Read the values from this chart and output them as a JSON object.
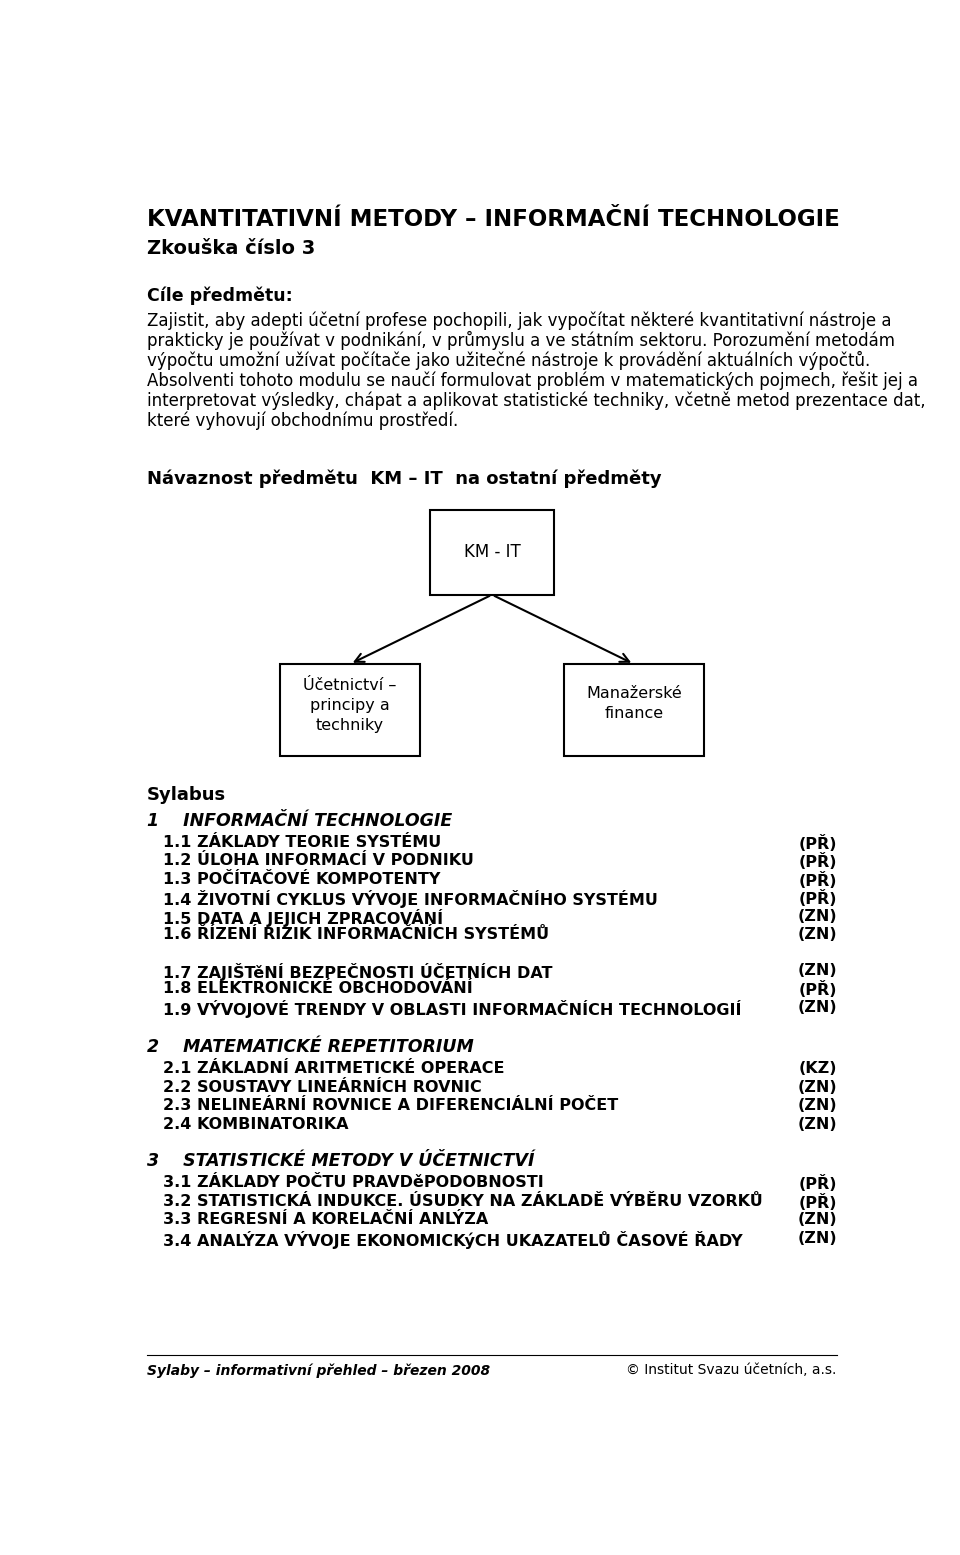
{
  "title": "KVANTITATIVNÍ METODY – INFORMAČNÍ TECHNOLOGIE",
  "subtitle": "Zkouška číslo 3",
  "section_cile": "Cíle předmětu:",
  "cile_lines": [
    "Zajistit, aby adepti účetní profese pochopili, jak vypočítat některé kvantitativní nástroje a",
    "prakticky je používat v podnikání, v průmyslu a ve státním sektoru. Porozumění metodám",
    "výpočtu umožní užívat počítače jako užitečné nástroje k provádění aktuálních výpočtů.",
    "Absolventi tohoto modulu se naučí formulovat problém v matematických pojmech, řešit jej a",
    "interpretovat výsledky, chápat a aplikovat statistické techniky, včetně metod prezentace dat,",
    "které vyhovují obchodnímu prostředí."
  ],
  "navaznost_title": "Návaznost předmětu  KM – IT  na ostatní předměty",
  "box_kmit": "KM - IT",
  "sylabus_title": "Sylabus",
  "section1_title": "1    INFORMAČNÍ TECHNOLOGIE",
  "items1": [
    [
      "1.1 ZÁKLADY TEORIE SYSTÉMU",
      "(PŘ)"
    ],
    [
      "1.2 ÚLOHA INFORMACÍ V PODNIKU",
      "(PŘ)"
    ],
    [
      "1.3 POČÍTAČOVÉ KOMPOTENTY",
      "(PŘ)"
    ],
    [
      "1.4 ŽIVOTNÍ CYKLUS VÝVOJE INFORMAČNÍHO SYSTÉMU",
      "(PŘ)"
    ],
    [
      "1.5 DATA A JEJICH ZPRACOVÁNÍ",
      "(ZN)"
    ],
    [
      "1.6 ŘÍZENÍ RIZIK INFORMAČNÍCH SYSTÉMŮ",
      "(ZN)"
    ]
  ],
  "items1b": [
    [
      "1.7 ZAJIŠTěNÍ BEZPEČNOSTI ÚČETNÍCH DAT",
      "(ZN)"
    ],
    [
      "1.8 ELEKTRONICKÉ OBCHODOVÁNÍ",
      "(PŘ)"
    ],
    [
      "1.9 VÝVOJOVÉ TRENDY V OBLASTI INFORMAČNÍCH TECHNOLOGIÍ",
      "(ZN)"
    ]
  ],
  "section2_title": "2    MATEMATICKÉ REPETITORIUM",
  "items2": [
    [
      "2.1 ZÁKLADNÍ ARITMETICKÉ OPERACE",
      "(KZ)"
    ],
    [
      "2.2 SOUSTAVY LINEÁRNÍCH ROVNIC",
      "(ZN)"
    ],
    [
      "2.3 NELINEÁRNÍ ROVNICE A DIFERENCIÁLNÍ POČET",
      "(ZN)"
    ],
    [
      "2.4 KOMBINATORIKA",
      "(ZN)"
    ]
  ],
  "section3_title": "3    STATISTICKÉ METODY V ÚČETNICTVÍ",
  "items3": [
    [
      "3.1 ZÁKLADY POČTU PRAVDěPODOBNOSTI",
      "(PŘ)"
    ],
    [
      "3.2 STATISTICKÁ INDUKCE. ÚSUDKY NA ZÁKLADĚ VÝBĚRU VZORKŮ",
      "(PŘ)"
    ],
    [
      "3.3 REGRESNÍ A KORELAČNÍ ANLÝZA",
      "(ZN)"
    ],
    [
      "3.4 ANALÝZA VÝVOJE EKONOMICKýCH UKAZATELŮ ČASOVÉ ŘADY",
      "(ZN)"
    ]
  ],
  "footer_left": "Sylaby – informativní přehled – březen 2008",
  "footer_right": "© Institut Svazu účetních, a.s.",
  "bg_color": "#ffffff"
}
